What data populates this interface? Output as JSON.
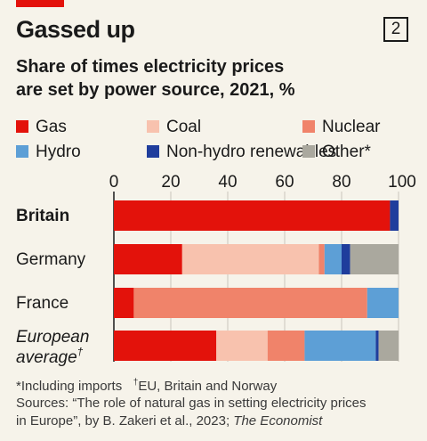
{
  "header": {
    "title": "Gassed up",
    "chart_number": "2",
    "subtitle_line1": "Share of times electricity prices",
    "subtitle_line2": "are set by power source, 2021, %"
  },
  "colors": {
    "accent": "#e3120b",
    "Gas": "#e3120b",
    "Coal": "#f8c2ae",
    "Nuclear": "#f0836a",
    "Hydro": "#5d9fd6",
    "Non-hydro renewables": "#1f3d9c",
    "Other*": "#aaa89e"
  },
  "chart_data": {
    "type": "bar",
    "orientation": "horizontal",
    "stacked": true,
    "xlim": [
      0,
      100
    ],
    "xticks": [
      0,
      20,
      40,
      60,
      80,
      100
    ],
    "categories": [
      "Britain",
      "Germany",
      "France",
      "European average†"
    ],
    "series": [
      {
        "name": "Gas",
        "values": [
          97,
          24,
          7,
          36
        ]
      },
      {
        "name": "Coal",
        "values": [
          0,
          48,
          0,
          18
        ]
      },
      {
        "name": "Nuclear",
        "values": [
          0,
          2,
          82,
          13
        ]
      },
      {
        "name": "Hydro",
        "values": [
          0,
          6,
          11,
          25
        ]
      },
      {
        "name": "Non-hydro renewables",
        "values": [
          3,
          3,
          0,
          1
        ]
      },
      {
        "name": "Other*",
        "values": [
          0,
          17,
          0,
          7
        ]
      }
    ],
    "legend": "top"
  },
  "footnotes": {
    "line1_part1": "*Including imports",
    "line1_dagger": "†",
    "line1_part2": "EU, Britain and Norway",
    "line2": "Sources: “The role of natural gas in setting electricity prices",
    "line3_part1": "in Europe”, by B. Zakeri et al., 2023; ",
    "line3_part2": "The Economist"
  }
}
